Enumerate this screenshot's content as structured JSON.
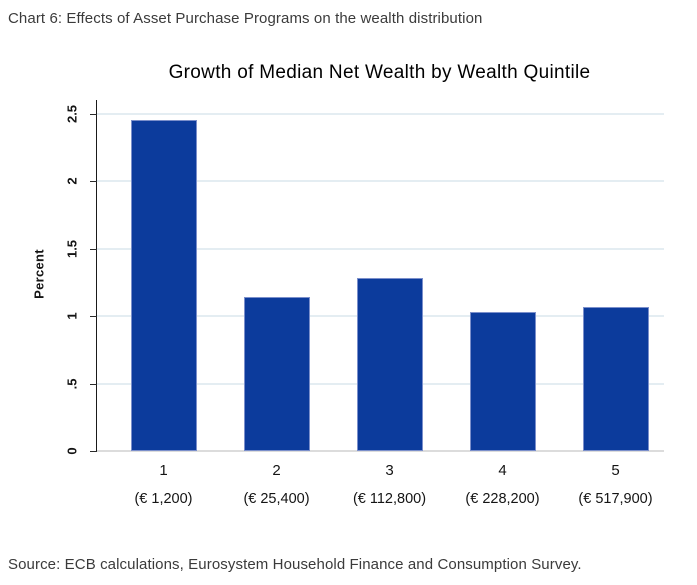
{
  "header": {
    "title": "Chart 6: Effects of Asset Purchase Programs on the wealth distribution"
  },
  "source": {
    "text": "Source: ECB calculations, Eurosystem Household Finance and Consumption Survey."
  },
  "chart_data": {
    "type": "bar",
    "title": "Growth of Median Net Wealth by Wealth Quintile",
    "xlabel": "",
    "ylabel": "Percent",
    "categories": [
      "1",
      "2",
      "3",
      "4",
      "5"
    ],
    "category_sublabels": [
      "(€ 1,200)",
      "(€ 25,400)",
      "(€ 112,800)",
      "(€ 228,200)",
      "(€ 517,900)"
    ],
    "values": [
      2.45,
      1.14,
      1.28,
      1.03,
      1.07
    ],
    "ylim": [
      0,
      2.6
    ],
    "yticks": [
      0,
      0.5,
      1,
      1.5,
      2,
      2.5
    ],
    "ytick_labels": [
      "0",
      ".5",
      "1",
      "1.5",
      "2",
      "2.5"
    ],
    "grid": true,
    "legend": "none",
    "bar_color": "#0c3b9c",
    "bar_border_color": "#7b8fcb",
    "gridline_color": "#e4edf2",
    "baseline_color": "#dcdcdc",
    "axis_color": "#1a1a1a"
  }
}
